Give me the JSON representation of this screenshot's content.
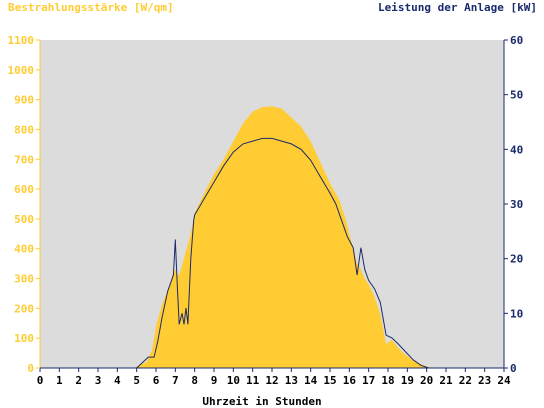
{
  "chart_data": {
    "type": "area",
    "left_axis_title": "Bestrahlungsstärke [W/qm]",
    "right_axis_title": "Leistung der Anlage [kW]",
    "xlabel": "Uhrzeit in Stunden",
    "x_ticks": [
      "0",
      "1",
      "2",
      "3",
      "4",
      "5",
      "6",
      "7",
      "8",
      "9",
      "10",
      "11",
      "12",
      "13",
      "14",
      "15",
      "16",
      "17",
      "18",
      "19",
      "20",
      "21",
      "22",
      "23",
      "24"
    ],
    "y_left_ticks": [
      "0",
      "100",
      "200",
      "300",
      "400",
      "500",
      "600",
      "700",
      "800",
      "900",
      "1000",
      "1100"
    ],
    "y_right_ticks": [
      "0",
      "10",
      "20",
      "30",
      "40",
      "50",
      "60"
    ],
    "xlim": [
      0,
      24
    ],
    "ylim_left": [
      0,
      1100
    ],
    "ylim_right": [
      0,
      60
    ],
    "colors": {
      "irradiance_fill": "#ffcc33",
      "power_line": "#1a2a6c",
      "plot_background": "#dcdcdc",
      "left_axis": "#ffcc33",
      "right_axis": "#1a2a6c",
      "x_axis_text": "#000000"
    },
    "series": [
      {
        "axis": "left",
        "kind": "area",
        "points": [
          [
            0,
            0
          ],
          [
            4.9,
            0
          ],
          [
            5,
            5
          ],
          [
            5.5,
            20
          ],
          [
            5.8,
            60
          ],
          [
            6,
            140
          ],
          [
            6.3,
            210
          ],
          [
            6.6,
            260
          ],
          [
            6.9,
            320
          ],
          [
            7,
            330
          ],
          [
            7.2,
            310
          ],
          [
            7.5,
            380
          ],
          [
            7.8,
            450
          ],
          [
            8,
            520
          ],
          [
            8.3,
            560
          ],
          [
            8.6,
            600
          ],
          [
            9,
            650
          ],
          [
            9.5,
            700
          ],
          [
            10,
            760
          ],
          [
            10.5,
            820
          ],
          [
            11,
            860
          ],
          [
            11.5,
            875
          ],
          [
            12,
            878
          ],
          [
            12.5,
            870
          ],
          [
            13,
            840
          ],
          [
            13.5,
            810
          ],
          [
            14,
            760
          ],
          [
            14.5,
            690
          ],
          [
            15,
            620
          ],
          [
            15.5,
            560
          ],
          [
            15.8,
            500
          ],
          [
            16,
            450
          ],
          [
            16.2,
            400
          ],
          [
            16.4,
            350
          ],
          [
            16.6,
            330
          ],
          [
            16.8,
            300
          ],
          [
            17,
            280
          ],
          [
            17.3,
            240
          ],
          [
            17.6,
            180
          ],
          [
            17.9,
            80
          ],
          [
            18.2,
            95
          ],
          [
            18.5,
            70
          ],
          [
            18.8,
            50
          ],
          [
            19.2,
            30
          ],
          [
            19.6,
            15
          ],
          [
            20,
            5
          ],
          [
            20.3,
            0
          ],
          [
            24,
            0
          ]
        ]
      },
      {
        "axis": "right",
        "kind": "line",
        "points": [
          [
            0,
            0
          ],
          [
            5,
            0
          ],
          [
            5.3,
            1
          ],
          [
            5.6,
            2
          ],
          [
            5.9,
            2
          ],
          [
            6.1,
            5
          ],
          [
            6.3,
            9
          ],
          [
            6.6,
            14
          ],
          [
            6.9,
            17
          ],
          [
            7,
            23.5
          ],
          [
            7.1,
            15
          ],
          [
            7.2,
            8
          ],
          [
            7.35,
            10
          ],
          [
            7.45,
            8
          ],
          [
            7.55,
            11
          ],
          [
            7.65,
            8
          ],
          [
            7.8,
            20
          ],
          [
            7.95,
            27
          ],
          [
            8,
            28
          ],
          [
            8.5,
            31
          ],
          [
            9,
            34
          ],
          [
            9.5,
            37
          ],
          [
            10,
            39.5
          ],
          [
            10.5,
            41
          ],
          [
            11,
            41.5
          ],
          [
            11.5,
            42
          ],
          [
            12,
            42
          ],
          [
            12.5,
            41.5
          ],
          [
            13,
            41
          ],
          [
            13.5,
            40
          ],
          [
            14,
            38
          ],
          [
            14.5,
            35
          ],
          [
            15,
            32
          ],
          [
            15.3,
            30
          ],
          [
            15.6,
            27
          ],
          [
            15.9,
            24
          ],
          [
            16.2,
            22
          ],
          [
            16.4,
            17
          ],
          [
            16.6,
            22
          ],
          [
            16.8,
            18
          ],
          [
            17,
            16
          ],
          [
            17.3,
            14.5
          ],
          [
            17.6,
            12
          ],
          [
            17.9,
            6
          ],
          [
            18.2,
            5.5
          ],
          [
            18.5,
            4.5
          ],
          [
            18.9,
            3
          ],
          [
            19.3,
            1.5
          ],
          [
            19.7,
            0.5
          ],
          [
            20.1,
            0
          ],
          [
            24,
            0
          ]
        ]
      }
    ],
    "grid": false
  }
}
